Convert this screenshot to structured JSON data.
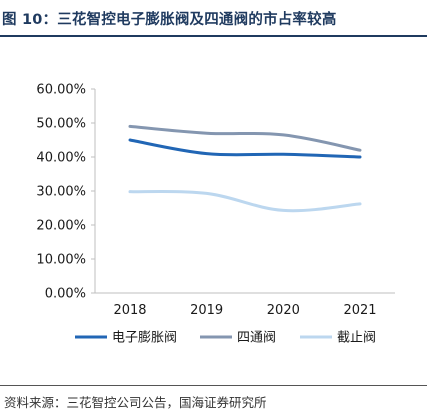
{
  "header": {
    "title": "图 10：三花智控电子膨胀阀及四通阀的市占率较高"
  },
  "footer": {
    "source": "资料来源：三花智控公司公告，国海证券研究所"
  },
  "chart_data": {
    "type": "line",
    "title": "",
    "xlabel": "",
    "ylabel": "",
    "x": [
      "2018",
      "2019",
      "2020",
      "2021"
    ],
    "ylim": [
      0,
      60
    ],
    "yticks": [
      "0.00%",
      "10.00%",
      "20.00%",
      "30.00%",
      "40.00%",
      "50.00%",
      "60.00%"
    ],
    "grid": false,
    "legend_position": "bottom",
    "series": [
      {
        "name": "电子膨胀阀",
        "values": [
          45.0,
          41.0,
          40.8,
          40.0
        ],
        "color": "#2166b5"
      },
      {
        "name": "四通阀",
        "values": [
          49.0,
          47.0,
          46.5,
          42.0
        ],
        "color": "#8496b0"
      },
      {
        "name": "截止阀",
        "values": [
          29.8,
          29.3,
          24.3,
          26.2
        ],
        "color": "#bcd7ef"
      }
    ]
  }
}
